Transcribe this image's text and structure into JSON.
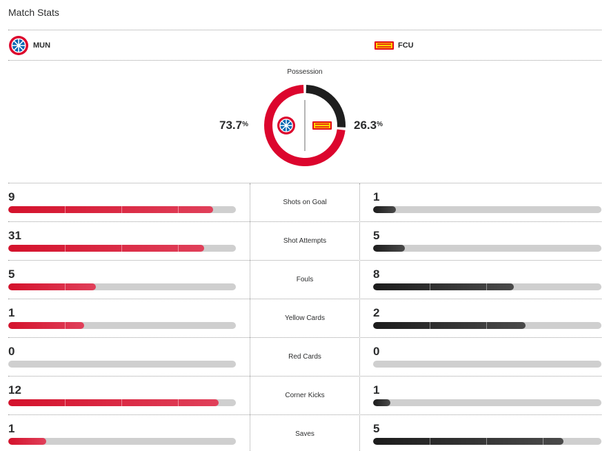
{
  "title": "Match Stats",
  "teams": {
    "home": {
      "abbr": "MUN",
      "color": "#dc052d",
      "logo": "bayern-crest-icon"
    },
    "away": {
      "abbr": "FCU",
      "color": "#1e1e1e",
      "logo": "union-berlin-crest-icon"
    }
  },
  "possession": {
    "label": "Possession",
    "home": "73.7",
    "away": "26.3",
    "sign": "%",
    "home_value": 73.7,
    "away_value": 26.3
  },
  "stats": [
    {
      "name": "Shots on Goal",
      "home": "9",
      "away": "1"
    },
    {
      "name": "Shot Attempts",
      "home": "31",
      "away": "5"
    },
    {
      "name": "Fouls",
      "home": "5",
      "away": "8"
    },
    {
      "name": "Yellow Cards",
      "home": "1",
      "away": "2"
    },
    {
      "name": "Red Cards",
      "home": "0",
      "away": "0"
    },
    {
      "name": "Corner Kicks",
      "home": "12",
      "away": "1"
    },
    {
      "name": "Saves",
      "home": "1",
      "away": "5"
    }
  ],
  "colors": {
    "home_bar": "#d4122c",
    "away_bar": "#1c1c1c",
    "empty_bar": "#cfcfcf"
  }
}
